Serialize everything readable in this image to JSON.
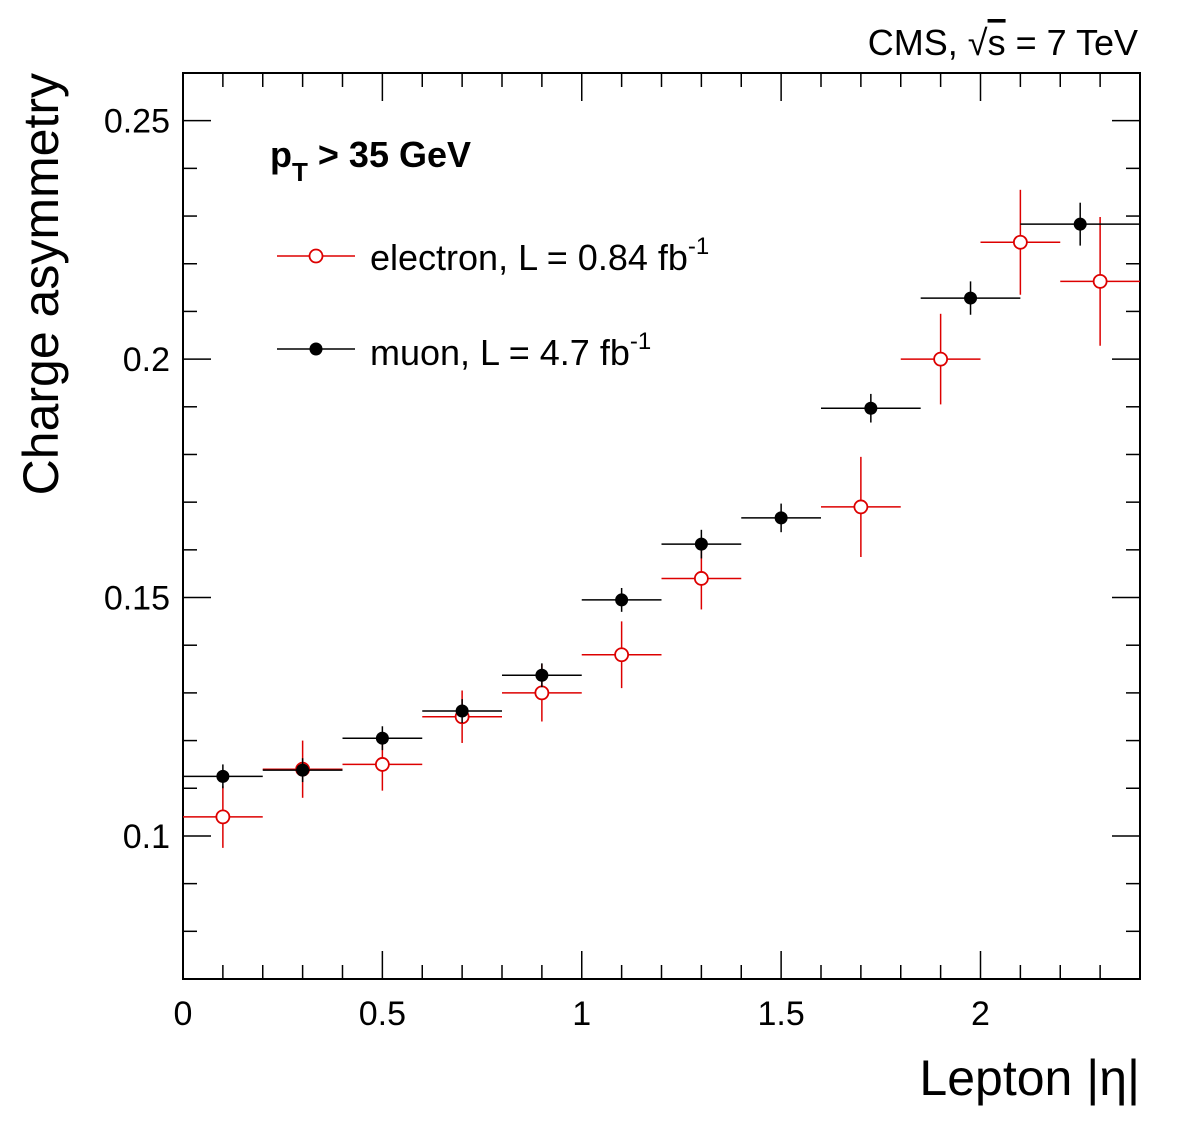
{
  "chart_data": {
    "type": "scatter",
    "header": {
      "experiment": "CMS,",
      "sqrt_symbol": "√",
      "energy_var": "s",
      "energy_rest": " = 7 TeV"
    },
    "cut_label": {
      "main": "p",
      "sub": "T",
      "rest": " > 35 GeV"
    },
    "xlabel": "Lepton |η|",
    "ylabel": "Charge asymmetry",
    "xlim": [
      0,
      2.4
    ],
    "ylim": [
      0.07,
      0.26
    ],
    "x_ticks": [
      {
        "v": 0,
        "label": "0"
      },
      {
        "v": 0.5,
        "label": "0.5"
      },
      {
        "v": 1,
        "label": "1"
      },
      {
        "v": 1.5,
        "label": "1.5"
      },
      {
        "v": 2,
        "label": "2"
      }
    ],
    "y_ticks": [
      {
        "v": 0.1,
        "label": "0.1"
      },
      {
        "v": 0.15,
        "label": "0.15"
      },
      {
        "v": 0.2,
        "label": "0.2"
      },
      {
        "v": 0.25,
        "label": "0.25"
      }
    ],
    "series": [
      {
        "name": "muon",
        "legend": {
          "prefix": "muon, L = 4.7 fb",
          "sup": "-1"
        },
        "color": "#000000",
        "marker": "filled-circle",
        "points": [
          {
            "x": 0.1,
            "xlo": 0.0,
            "xhi": 0.2,
            "y": 0.1125,
            "err": 0.0025
          },
          {
            "x": 0.3,
            "xlo": 0.2,
            "xhi": 0.4,
            "y": 0.1138,
            "err": 0.0025
          },
          {
            "x": 0.5,
            "xlo": 0.4,
            "xhi": 0.6,
            "y": 0.1205,
            "err": 0.0025
          },
          {
            "x": 0.7,
            "xlo": 0.6,
            "xhi": 0.8,
            "y": 0.1262,
            "err": 0.0025
          },
          {
            "x": 0.9,
            "xlo": 0.8,
            "xhi": 1.0,
            "y": 0.1337,
            "err": 0.0025
          },
          {
            "x": 1.1,
            "xlo": 1.0,
            "xhi": 1.2,
            "y": 0.1495,
            "err": 0.0025
          },
          {
            "x": 1.3,
            "xlo": 1.2,
            "xhi": 1.4,
            "y": 0.1612,
            "err": 0.003
          },
          {
            "x": 1.5,
            "xlo": 1.4,
            "xhi": 1.6,
            "y": 0.1667,
            "err": 0.003
          },
          {
            "x": 1.725,
            "xlo": 1.6,
            "xhi": 1.85,
            "y": 0.1897,
            "err": 0.003
          },
          {
            "x": 1.975,
            "xlo": 1.85,
            "xhi": 2.1,
            "y": 0.2128,
            "err": 0.0035
          },
          {
            "x": 2.25,
            "xlo": 2.1,
            "xhi": 2.4,
            "y": 0.2283,
            "err": 0.0045
          }
        ]
      },
      {
        "name": "electron",
        "legend": {
          "prefix": "electron, L = 0.84 fb",
          "sup": "-1"
        },
        "color": "#dd0000",
        "marker": "open-circle",
        "points": [
          {
            "x": 0.1,
            "xlo": 0.0,
            "xhi": 0.2,
            "y": 0.104,
            "err": 0.0065
          },
          {
            "x": 0.3,
            "xlo": 0.2,
            "xhi": 0.4,
            "y": 0.114,
            "err": 0.006
          },
          {
            "x": 0.5,
            "xlo": 0.4,
            "xhi": 0.6,
            "y": 0.115,
            "err": 0.0055
          },
          {
            "x": 0.7,
            "xlo": 0.6,
            "xhi": 0.8,
            "y": 0.125,
            "err": 0.0055
          },
          {
            "x": 0.9,
            "xlo": 0.8,
            "xhi": 1.0,
            "y": 0.13,
            "err": 0.006
          },
          {
            "x": 1.1,
            "xlo": 1.0,
            "xhi": 1.2,
            "y": 0.138,
            "err": 0.007
          },
          {
            "x": 1.3,
            "xlo": 1.2,
            "xhi": 1.4,
            "y": 0.154,
            "err": 0.0065
          },
          {
            "x": 1.7,
            "xlo": 1.6,
            "xhi": 1.8,
            "y": 0.169,
            "err": 0.0105
          },
          {
            "x": 1.9,
            "xlo": 1.8,
            "xhi": 2.0,
            "y": 0.2,
            "err": 0.0095
          },
          {
            "x": 2.1,
            "xlo": 2.0,
            "xhi": 2.2,
            "y": 0.2245,
            "err": 0.011
          },
          {
            "x": 2.3,
            "xlo": 2.2,
            "xhi": 2.4,
            "y": 0.2163,
            "err": 0.0135
          }
        ]
      }
    ]
  }
}
